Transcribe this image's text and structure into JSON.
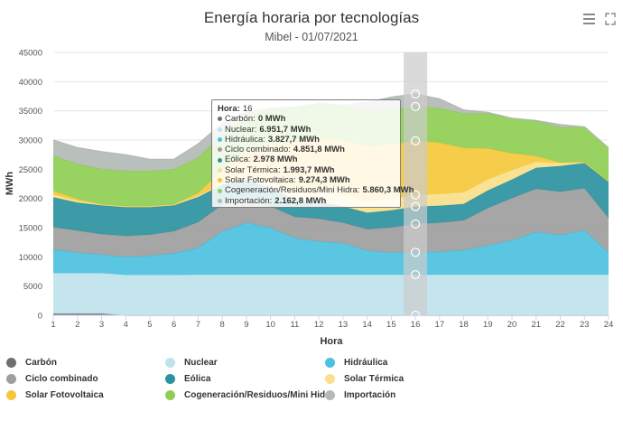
{
  "chart_data": {
    "type": "area",
    "stacked": true,
    "title": "Energía horaria por tecnologías",
    "subtitle": "Mibel - 01/07/2021",
    "xlabel": "Hora",
    "ylabel": "MWh",
    "ylim": [
      0,
      45000
    ],
    "yticks": [
      0,
      5000,
      10000,
      15000,
      20000,
      25000,
      30000,
      35000,
      40000,
      45000
    ],
    "categories": [
      "1",
      "2",
      "3",
      "4",
      "5",
      "6",
      "7",
      "8",
      "9",
      "10",
      "11",
      "12",
      "13",
      "14",
      "15",
      "16",
      "17",
      "18",
      "19",
      "20",
      "21",
      "22",
      "23",
      "24"
    ],
    "series": [
      {
        "name": "Carbón",
        "color": "#6f6f6f",
        "values": [
          300,
          300,
          300,
          0,
          0,
          0,
          0,
          0,
          0,
          0,
          0,
          0,
          0,
          0,
          0,
          0,
          0,
          0,
          0,
          0,
          0,
          0,
          0,
          0
        ]
      },
      {
        "name": "Nuclear",
        "color": "#bfe3ec",
        "values": [
          6900,
          6900,
          6900,
          6900,
          6900,
          6900,
          6950,
          6950,
          6950,
          6950,
          6950,
          6950,
          6950,
          6950,
          6950,
          6950,
          6950,
          6950,
          6950,
          6950,
          6950,
          6950,
          6950,
          6950
        ]
      },
      {
        "name": "Hidráulica",
        "color": "#4cc1e0",
        "values": [
          4100,
          3500,
          3200,
          3100,
          3300,
          3700,
          4600,
          7400,
          8900,
          8000,
          6300,
          5700,
          5400,
          4100,
          3800,
          3830,
          3900,
          4200,
          5000,
          5900,
          7300,
          6800,
          7600,
          3800
        ]
      },
      {
        "name": "Ciclo combinado",
        "color": "#9e9e9e",
        "values": [
          3800,
          3800,
          3500,
          3600,
          3600,
          3800,
          4400,
          4600,
          4200,
          3700,
          3600,
          3900,
          3500,
          3700,
          4300,
          4850,
          5000,
          5100,
          6400,
          7200,
          7400,
          7400,
          7200,
          5900
        ]
      },
      {
        "name": "Eólica",
        "color": "#2b93a0",
        "values": [
          5100,
          4800,
          4900,
          4900,
          4700,
          4400,
          4300,
          3400,
          3100,
          3100,
          3000,
          2900,
          2800,
          2800,
          2900,
          2980,
          2900,
          2800,
          3000,
          3200,
          3600,
          4400,
          4300,
          6200
        ]
      },
      {
        "name": "Solar Térmica",
        "color": "#fae08c",
        "values": [
          500,
          300,
          200,
          200,
          200,
          200,
          200,
          300,
          600,
          1000,
          1400,
          1700,
          1900,
          2000,
          2000,
          1990,
          2000,
          2000,
          1900,
          1600,
          1000,
          500,
          200,
          100
        ]
      },
      {
        "name": "Solar Fotovoltaica",
        "color": "#f5c83c",
        "values": [
          600,
          300,
          0,
          0,
          0,
          0,
          500,
          2200,
          4300,
          6700,
          8300,
          9100,
          9400,
          9400,
          9300,
          9270,
          8800,
          7600,
          5300,
          2900,
          1000,
          100,
          0,
          0
        ]
      },
      {
        "name": "Cogeneración/Residuos/Mini Hidra",
        "color": "#8fce52",
        "values": [
          6000,
          6000,
          6000,
          6000,
          6000,
          6000,
          6000,
          6000,
          6000,
          6000,
          6000,
          6000,
          6000,
          6000,
          5900,
          5860,
          5900,
          5900,
          6000,
          6000,
          6000,
          6000,
          6000,
          5700
        ]
      },
      {
        "name": "Importación",
        "color": "#b3bab4",
        "values": [
          2700,
          2800,
          3000,
          2800,
          2000,
          1700,
          2400,
          2000,
          800,
          0,
          100,
          0,
          0,
          1500,
          2200,
          2160,
          1600,
          600,
          200,
          0,
          100,
          500,
          0,
          0
        ]
      }
    ],
    "tooltip_index": 15,
    "tooltip": {
      "header_label": "Hora:",
      "header_value": "16",
      "rows": [
        {
          "label": "Carbón:",
          "value": "0 MWh",
          "color": "#6f6f6f"
        },
        {
          "label": "Nuclear:",
          "value": "6.951,7 MWh",
          "color": "#bfe3ec"
        },
        {
          "label": "Hidráulica:",
          "value": "3.827,7 MWh",
          "color": "#4cc1e0"
        },
        {
          "label": "Ciclo combinado:",
          "value": "4.851,8 MWh",
          "color": "#9e9e9e"
        },
        {
          "label": "Eólica:",
          "value": "2.978 MWh",
          "color": "#2b93a0"
        },
        {
          "label": "Solar Térmica:",
          "value": "1.993,7 MWh",
          "color": "#fae08c"
        },
        {
          "label": "Solar Fotovoltaica:",
          "value": "9.274,3 MWh",
          "color": "#f5c83c"
        },
        {
          "label": "Cogeneración/Residuos/Mini Hidra:",
          "value": "5.860,3 MWh",
          "color": "#8fce52"
        },
        {
          "label": "Importación:",
          "value": "2.162,8 MWh",
          "color": "#b3bab4"
        }
      ]
    },
    "legend_position": "bottom"
  },
  "icons": {
    "menu": "hamburger-menu-icon",
    "expand": "expand-icon"
  }
}
